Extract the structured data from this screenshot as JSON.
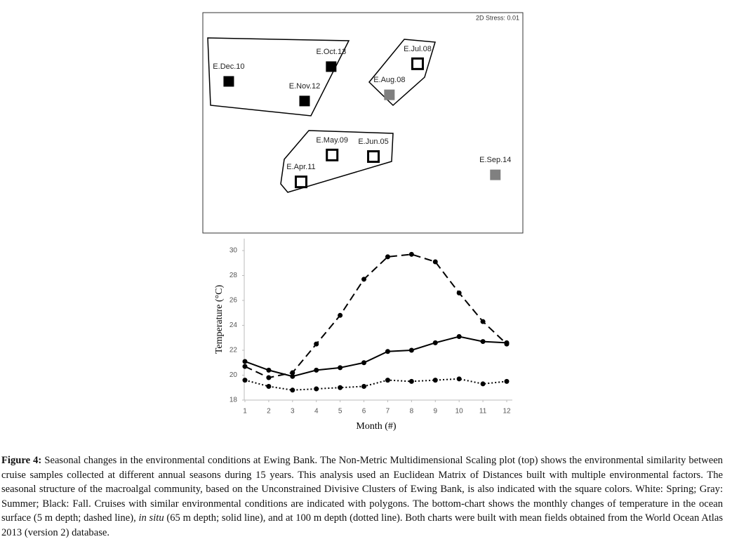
{
  "chart_data": [
    {
      "type": "scatter",
      "annotation": "2D Stress: 0.01",
      "xlim": [
        0,
        100
      ],
      "ylim": [
        0,
        100
      ],
      "point_labels": [
        "E.Dec.10",
        "E.Oct.13",
        "E.Nov.12",
        "E.Jul.08",
        "E.Aug.08",
        "E.May.09",
        "E.Jun.05",
        "E.Apr.11",
        "E.Sep.14"
      ],
      "x": [
        8.1,
        40.1,
        31.8,
        67.1,
        58.3,
        40.4,
        53.3,
        30.7,
        91.4
      ],
      "values": [
        68.8,
        75.5,
        59.9,
        76.8,
        62.7,
        35.4,
        34.7,
        23.2,
        26.4
      ],
      "colors": [
        "#000000",
        "#000000",
        "#000000",
        "#ffffff",
        "#808080",
        "#ffffff",
        "#ffffff",
        "#ffffff",
        "#808080"
      ]
    },
    {
      "type": "line",
      "y_label": "Temperature (°C)",
      "x_label": "Month (#)",
      "x": [
        1,
        2,
        3,
        4,
        5,
        6,
        7,
        8,
        9,
        10,
        11,
        12
      ],
      "xlim": [
        1,
        12
      ],
      "xticks": [
        1,
        2,
        3,
        4,
        5,
        6,
        7,
        8,
        9,
        10,
        11,
        12
      ],
      "ylim": [
        18,
        30
      ],
      "yticks": [
        18,
        20,
        22,
        24,
        26,
        28,
        30
      ],
      "grid": false,
      "series": [
        {
          "color": "#000000",
          "dash": "dashed",
          "values": [
            20.7,
            19.8,
            20.2,
            22.5,
            24.8,
            27.7,
            29.5,
            29.7,
            29.1,
            26.6,
            24.3,
            22.5
          ]
        },
        {
          "color": "#000000",
          "dash": "solid",
          "values": [
            21.1,
            20.4,
            19.9,
            20.4,
            20.6,
            21.0,
            21.9,
            22.0,
            22.6,
            23.1,
            22.7,
            22.6
          ]
        },
        {
          "color": "#000000",
          "dash": "dotted",
          "values": [
            19.6,
            19.1,
            18.8,
            18.9,
            19.0,
            19.1,
            19.6,
            19.5,
            19.6,
            19.7,
            19.3,
            19.5
          ]
        }
      ]
    }
  ],
  "caption": {
    "label": "Figure 4:",
    "parts": [
      " Seasonal changes in the environmental conditions at Ewing Bank. The Non-Metric Multidimensional Scaling plot (top) shows the environmental similarity between cruise samples collected at different annual seasons during 15 years. This analysis used an Euclidean Matrix of Distances built with multiple environmental factors. The seasonal structure of the macroalgal community, based on the Unconstrained Divisive Clusters of Ewing Bank, is also indicated with the square colors. White: Spring; Gray: Summer; Black: Fall. Cruises with similar environmental conditions are indicated with polygons. The bottom-chart shows the monthly changes of temperature in the ocean surface (5 m depth; dashed line), ",
      "in situ",
      " (65 m depth; solid line), and at 100 m depth (dotted line). Both charts were built with mean fields obtained from the World Ocean Atlas 2013 (version 2) database."
    ]
  }
}
